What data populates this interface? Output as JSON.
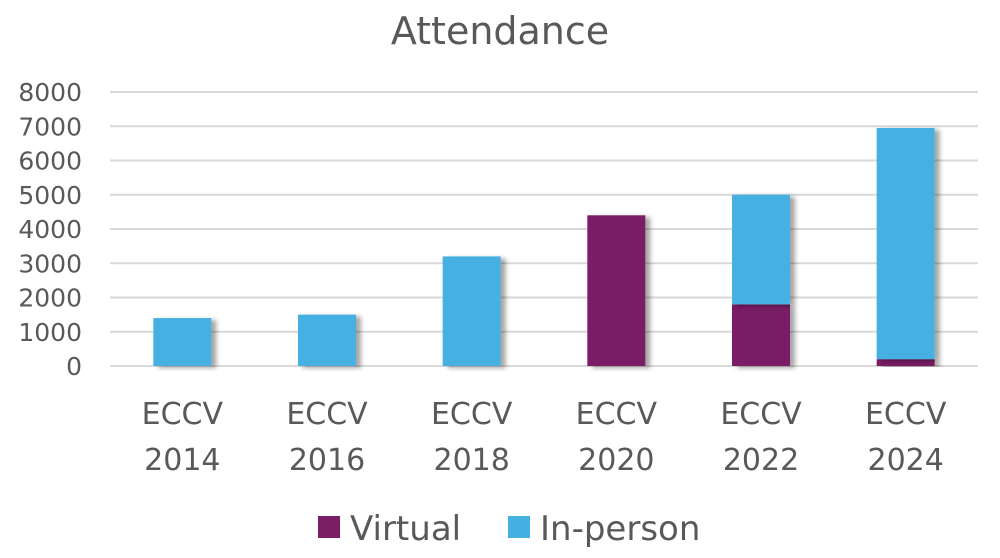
{
  "colors": {
    "virtual": "#7a1f66",
    "in_person": "#44b0e1",
    "text": "#595959",
    "grid": "#d9d9d9"
  },
  "chart_data": {
    "type": "bar",
    "stacked": true,
    "title": "Attendance",
    "xlabel": "",
    "ylabel": "",
    "ylim": [
      0,
      8000
    ],
    "yticks": [
      0,
      1000,
      2000,
      3000,
      4000,
      5000,
      6000,
      7000,
      8000
    ],
    "grid": true,
    "legend_position": "bottom",
    "categories": [
      [
        "ECCV",
        "2014"
      ],
      [
        "ECCV",
        "2016"
      ],
      [
        "ECCV",
        "2018"
      ],
      [
        "ECCV",
        "2020"
      ],
      [
        "ECCV",
        "2022"
      ],
      [
        "ECCV",
        "2024"
      ]
    ],
    "series": [
      {
        "name": "Virtual",
        "color_key": "virtual",
        "values": [
          0,
          0,
          0,
          4400,
          1800,
          200
        ]
      },
      {
        "name": "In-person",
        "color_key": "in_person",
        "values": [
          1400,
          1500,
          3200,
          0,
          3200,
          6750
        ]
      }
    ]
  }
}
